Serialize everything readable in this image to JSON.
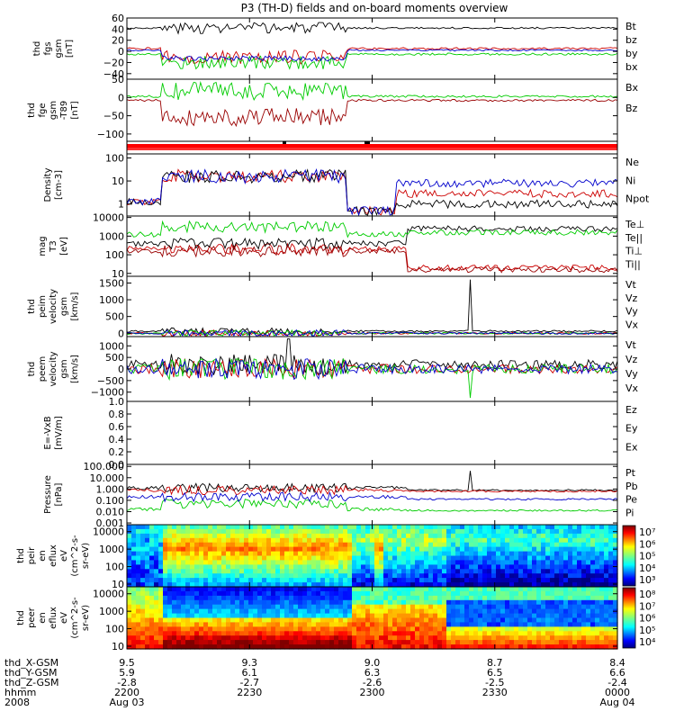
{
  "chart_data": {
    "type": "line",
    "title": "P3 (TH-D) fields and on-board moments overview",
    "x_axis": {
      "rows": [
        {
          "label": "thd_X-GSM",
          "values": [
            "9.5",
            "9.3",
            "9.0",
            "8.7",
            "8.4"
          ]
        },
        {
          "label": "thd_Y-GSM",
          "values": [
            "5.9",
            "6.1",
            "6.3",
            "6.5",
            "6.6"
          ]
        },
        {
          "label": "thd_Z-GSM",
          "values": [
            "-2.8",
            "-2.7",
            "-2.6",
            "-2.5",
            "-2.4"
          ]
        },
        {
          "label": "hhmm",
          "values": [
            "2200",
            "2230",
            "2300",
            "2330",
            "0000"
          ]
        },
        {
          "label": "2008",
          "values": [
            "Aug 03",
            "",
            "",
            "",
            "Aug 04"
          ]
        }
      ],
      "xlim_minutes": [
        0,
        120
      ]
    },
    "panels": [
      {
        "id": "fgs",
        "ylabel": [
          "thd",
          "fgs",
          "gsm",
          "[nT]"
        ],
        "yscale": "linear",
        "ylim": [
          -50,
          60
        ],
        "yticks": [
          "60",
          "40",
          "20",
          "0",
          "−20",
          "−40"
        ],
        "legend": [
          {
            "name": "Bt",
            "color": "#000000"
          },
          {
            "name": "bz",
            "color": "#cc0000"
          },
          {
            "name": "by",
            "color": "#00cc00"
          },
          {
            "name": "bx",
            "color": "#0000cc"
          }
        ]
      },
      {
        "id": "fge",
        "ylabel": [
          "thd",
          "fge",
          "gsm",
          "-T89",
          "[nT]"
        ],
        "yscale": "linear",
        "ylim": [
          -120,
          50
        ],
        "yticks": [
          "50",
          "0",
          "−50",
          "−100"
        ],
        "legend": [
          {
            "name": "Bx",
            "color": "#00cc00"
          },
          {
            "name": "Bz",
            "color": "#990000"
          }
        ]
      },
      {
        "id": "mode-bar",
        "ylabel": [],
        "legend": []
      },
      {
        "id": "density",
        "ylabel": [
          "Density",
          "[cm-3]"
        ],
        "yscale": "log",
        "ylim": [
          0.3,
          150
        ],
        "yticks": [
          "100",
          "10",
          "1"
        ],
        "legend": [
          {
            "name": "Ne",
            "color": "#cc0000"
          },
          {
            "name": "Ni",
            "color": "#000000"
          },
          {
            "name": "Npot",
            "color": "#0000cc"
          }
        ]
      },
      {
        "id": "temperature",
        "ylabel": [
          "mag",
          "T3",
          "[eV]"
        ],
        "yscale": "log",
        "ylim": [
          7,
          12000
        ],
        "yticks": [
          "10000",
          "1000",
          "100",
          "10"
        ],
        "legend": [
          {
            "name": "Te⊥",
            "color": "#cc0000"
          },
          {
            "name": "Te||",
            "color": "#000000"
          },
          {
            "name": "Ti⊥",
            "color": "#990000"
          },
          {
            "name": "Ti||",
            "color": "#00cc00"
          }
        ]
      },
      {
        "id": "ion-velocity",
        "ylabel": [
          "thd",
          "peim",
          "velocity",
          "gsm",
          "[km/s]"
        ],
        "yscale": "linear",
        "ylim": [
          -100,
          1700
        ],
        "yticks": [
          "1500",
          "1000",
          "500",
          "0"
        ],
        "legend": [
          {
            "name": "Vt",
            "color": "#000000"
          },
          {
            "name": "Vz",
            "color": "#cc0000"
          },
          {
            "name": "Vy",
            "color": "#00cc00"
          },
          {
            "name": "Vx",
            "color": "#0000cc"
          }
        ]
      },
      {
        "id": "electron-velocity",
        "ylabel": [
          "thd",
          "peem",
          "velocity",
          "gsm",
          "[km/s]"
        ],
        "yscale": "linear",
        "ylim": [
          -1400,
          1400
        ],
        "yticks": [
          "1000",
          "500",
          "0",
          "−500",
          "−1000"
        ],
        "legend": [
          {
            "name": "Vt",
            "color": "#000000"
          },
          {
            "name": "Vz",
            "color": "#cc0000"
          },
          {
            "name": "Vy",
            "color": "#00cc00"
          },
          {
            "name": "Vx",
            "color": "#0000cc"
          }
        ]
      },
      {
        "id": "efield",
        "ylabel": [
          "E=-VxB",
          "[mV/m]"
        ],
        "yscale": "linear",
        "ylim": [
          0,
          1
        ],
        "yticks": [
          "1.0",
          "0.8",
          "0.6",
          "0.4",
          "0.2",
          "0.0"
        ],
        "legend": [
          {
            "name": "Ez",
            "color": "#cc0000"
          },
          {
            "name": "Ey",
            "color": "#00cc00"
          },
          {
            "name": "Ex",
            "color": "#0000cc"
          }
        ]
      },
      {
        "id": "pressure",
        "ylabel": [
          "Pressure",
          "[nPa]"
        ],
        "yscale": "log",
        "ylim": [
          0.0007,
          150
        ],
        "yticks": [
          "100.000",
          "10.000",
          "1.000",
          "0.100",
          "0.010",
          "0.001"
        ],
        "legend": [
          {
            "name": "Pt",
            "color": "#000000"
          },
          {
            "name": "Pb",
            "color": "#cc0000"
          },
          {
            "name": "Pe",
            "color": "#00cc00"
          },
          {
            "name": "Pi",
            "color": "#0000cc"
          }
        ]
      },
      {
        "id": "ion-spectrogram",
        "ylabel": [
          "thd",
          "peir",
          "en",
          "eflux",
          "eV",
          "(cm^2-s-",
          "sr-eV)"
        ],
        "yscale": "log",
        "ylim": [
          7,
          25000
        ],
        "yticks": [
          "10000",
          "1000",
          "100",
          "10"
        ],
        "colorbar_ticks": [
          "10⁷",
          "10⁶",
          "10⁵",
          "10⁴",
          "10³"
        ],
        "legend": []
      },
      {
        "id": "electron-spectrogram",
        "ylabel": [
          "thd",
          "peer",
          "en",
          "eflux",
          "eV",
          "(cm^2-s-",
          "sr-eV)"
        ],
        "yscale": "log",
        "ylim": [
          7,
          25000
        ],
        "yticks": [
          "10000",
          "1000",
          "100",
          "10"
        ],
        "colorbar_ticks": [
          "10⁸",
          "10⁷",
          "10⁶",
          "10⁵",
          "10⁴"
        ],
        "legend": []
      }
    ]
  }
}
